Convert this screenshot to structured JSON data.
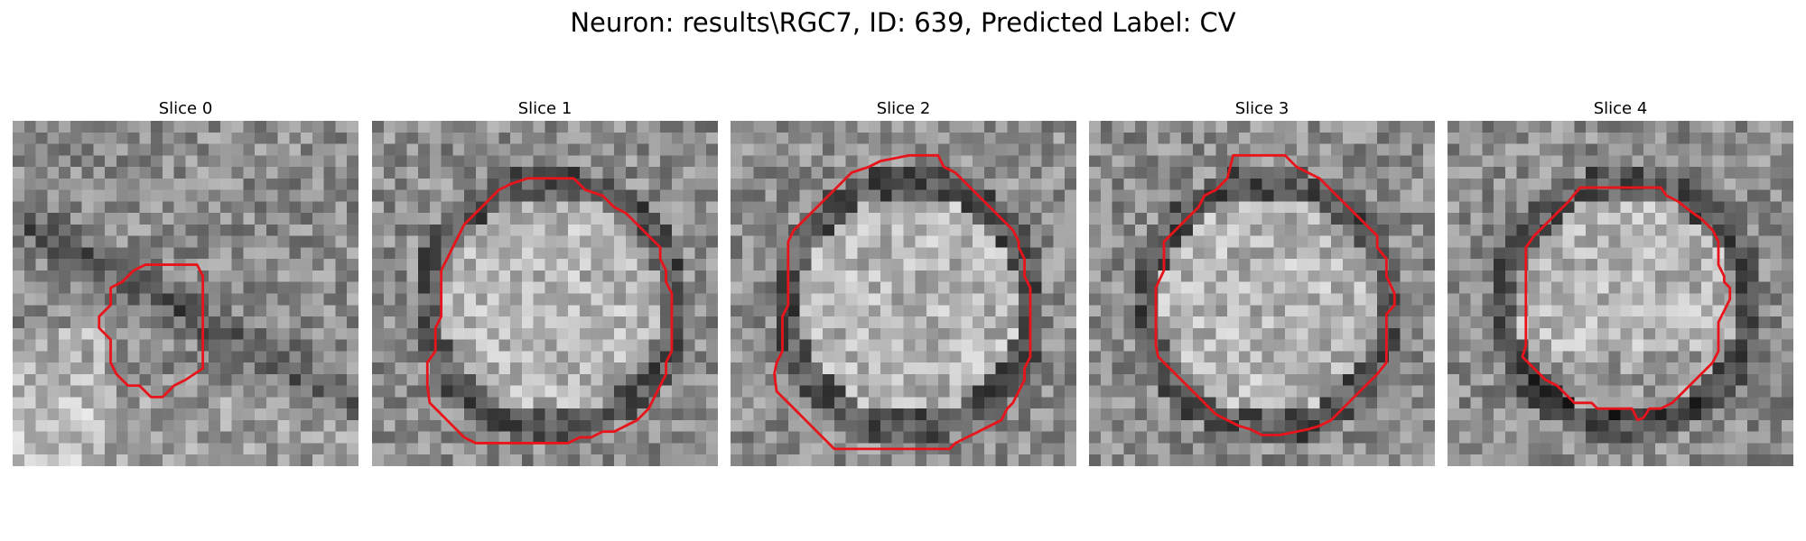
{
  "figure": {
    "title": "Neuron: results\\RGC7, ID: 639, Predicted Label: CV"
  },
  "colors": {
    "contour": "#e8141b",
    "background": "#ffffff"
  },
  "grid_size": 30,
  "slices": [
    {
      "title": "Slice 0",
      "image_kind": "grayscale-noise-with-dark-diagonal-band",
      "contour": [
        [
          11.5,
          12.5
        ],
        [
          16,
          12.5
        ],
        [
          16.5,
          13.5
        ],
        [
          16.5,
          21.5
        ],
        [
          15,
          22.5
        ],
        [
          14,
          23
        ],
        [
          13,
          24
        ],
        [
          12,
          24
        ],
        [
          11,
          23
        ],
        [
          10,
          23
        ],
        [
          9,
          22
        ],
        [
          8.5,
          21
        ],
        [
          8.5,
          19
        ],
        [
          7.5,
          18
        ],
        [
          7.5,
          17
        ],
        [
          8.5,
          16
        ],
        [
          8.5,
          14.5
        ],
        [
          9.5,
          14
        ],
        [
          10.5,
          13
        ]
      ]
    },
    {
      "title": "Slice 1",
      "image_kind": "grayscale-noise-with-round-cell",
      "contour": [
        [
          13.5,
          5
        ],
        [
          17.5,
          5
        ],
        [
          18.5,
          6
        ],
        [
          20,
          6.5
        ],
        [
          21,
          7.5
        ],
        [
          22,
          8
        ],
        [
          23,
          9
        ],
        [
          24,
          10
        ],
        [
          25,
          11
        ],
        [
          25,
          12
        ],
        [
          25.5,
          13
        ],
        [
          25.5,
          14
        ],
        [
          26,
          15
        ],
        [
          26,
          20
        ],
        [
          25.5,
          21
        ],
        [
          25.5,
          22
        ],
        [
          25,
          23
        ],
        [
          24.5,
          24
        ],
        [
          24,
          25
        ],
        [
          23,
          26
        ],
        [
          22,
          26.5
        ],
        [
          21,
          27
        ],
        [
          20,
          27
        ],
        [
          19,
          27.5
        ],
        [
          18,
          27.5
        ],
        [
          17,
          28
        ],
        [
          9,
          28
        ],
        [
          8,
          27.5
        ],
        [
          7,
          26.5
        ],
        [
          6,
          25.5
        ],
        [
          5,
          24.5
        ],
        [
          4.8,
          23
        ],
        [
          4.8,
          21
        ],
        [
          5.5,
          20
        ],
        [
          5.5,
          18
        ],
        [
          6,
          17
        ],
        [
          6,
          13
        ],
        [
          6.5,
          12
        ],
        [
          7,
          11
        ],
        [
          7.5,
          10
        ],
        [
          8,
          9
        ],
        [
          9,
          8
        ],
        [
          10,
          7
        ],
        [
          11,
          6
        ],
        [
          12,
          5.5
        ]
      ]
    },
    {
      "title": "Slice 2",
      "image_kind": "grayscale-noise-with-round-cell",
      "contour": [
        [
          15.5,
          3
        ],
        [
          18,
          3
        ],
        [
          18.5,
          4
        ],
        [
          19.5,
          4.5
        ],
        [
          20.5,
          5.5
        ],
        [
          21.5,
          6.5
        ],
        [
          22.5,
          7.5
        ],
        [
          23.5,
          8.5
        ],
        [
          24.5,
          9.5
        ],
        [
          25,
          10.5
        ],
        [
          25,
          11
        ],
        [
          25.5,
          12
        ],
        [
          25.5,
          13.5
        ],
        [
          26,
          14.5
        ],
        [
          26,
          20.5
        ],
        [
          25.5,
          21.5
        ],
        [
          25.5,
          22.5
        ],
        [
          25,
          23.5
        ],
        [
          24.5,
          24.5
        ],
        [
          24,
          25
        ],
        [
          23.5,
          26
        ],
        [
          22.5,
          26.5
        ],
        [
          21.5,
          27
        ],
        [
          20.5,
          27.5
        ],
        [
          19.5,
          28
        ],
        [
          19,
          28.5
        ],
        [
          9,
          28.5
        ],
        [
          8,
          27.5
        ],
        [
          7,
          26.5
        ],
        [
          6,
          25.5
        ],
        [
          5,
          24.5
        ],
        [
          4,
          23.5
        ],
        [
          3.8,
          22
        ],
        [
          4,
          21
        ],
        [
          4.5,
          20
        ],
        [
          4.5,
          17
        ],
        [
          5,
          16
        ],
        [
          5,
          10.5
        ],
        [
          5.5,
          9.5
        ],
        [
          6.5,
          8.5
        ],
        [
          7.5,
          7.5
        ],
        [
          8.5,
          6.5
        ],
        [
          9.5,
          5.5
        ],
        [
          10.5,
          4.5
        ],
        [
          12,
          4
        ],
        [
          13,
          3.5
        ],
        [
          14.5,
          3.2
        ]
      ]
    },
    {
      "title": "Slice 3",
      "image_kind": "grayscale-noise-with-round-cell",
      "contour": [
        [
          12.5,
          3
        ],
        [
          17,
          3
        ],
        [
          18,
          4
        ],
        [
          19,
          4.5
        ],
        [
          20,
          5
        ],
        [
          21,
          6
        ],
        [
          22,
          7
        ],
        [
          23,
          8
        ],
        [
          25,
          10
        ],
        [
          25,
          11
        ],
        [
          25.8,
          12
        ],
        [
          25.8,
          13.5
        ],
        [
          26.5,
          15
        ],
        [
          26.5,
          16
        ],
        [
          25.8,
          16.8
        ],
        [
          25.8,
          21
        ],
        [
          25,
          22
        ],
        [
          24,
          23
        ],
        [
          23,
          24
        ],
        [
          22,
          25
        ],
        [
          21,
          26
        ],
        [
          20,
          26.5
        ],
        [
          19,
          26.8
        ],
        [
          18,
          27
        ],
        [
          16.5,
          27.3
        ],
        [
          15,
          27.3
        ],
        [
          14,
          26.8
        ],
        [
          13,
          26.5
        ],
        [
          12,
          26
        ],
        [
          11,
          25.5
        ],
        [
          10,
          24.5
        ],
        [
          9.5,
          24
        ],
        [
          9,
          23.5
        ],
        [
          8,
          22.5
        ],
        [
          7,
          21.5
        ],
        [
          6,
          20.5
        ],
        [
          5.8,
          19.5
        ],
        [
          5.8,
          16
        ],
        [
          5.8,
          14.5
        ],
        [
          6.5,
          13
        ],
        [
          6.5,
          10.5
        ],
        [
          7.5,
          9.5
        ],
        [
          8.5,
          8.5
        ],
        [
          9.5,
          7.5
        ],
        [
          10,
          6.5
        ],
        [
          11,
          6
        ],
        [
          12,
          5
        ]
      ]
    },
    {
      "title": "Slice 4",
      "image_kind": "grayscale-noise-with-round-cell-dark-rim",
      "contour": [
        [
          11.5,
          5.8
        ],
        [
          18.5,
          5.8
        ],
        [
          19,
          6.5
        ],
        [
          20,
          7
        ],
        [
          21,
          7.8
        ],
        [
          22,
          8.5
        ],
        [
          23,
          9.5
        ],
        [
          23.5,
          10.5
        ],
        [
          23.5,
          12.5
        ],
        [
          24,
          13.5
        ],
        [
          24,
          14
        ],
        [
          24.5,
          14.5
        ],
        [
          24.5,
          15.5
        ],
        [
          24,
          16.5
        ],
        [
          23.5,
          17.5
        ],
        [
          23.5,
          20
        ],
        [
          23,
          21
        ],
        [
          22,
          22
        ],
        [
          21,
          23
        ],
        [
          20,
          24
        ],
        [
          19.5,
          24.5
        ],
        [
          18.5,
          25
        ],
        [
          17.5,
          25
        ],
        [
          17,
          25.8
        ],
        [
          16.5,
          26
        ],
        [
          16,
          25
        ],
        [
          13,
          25
        ],
        [
          12.5,
          24.5
        ],
        [
          11,
          24.5
        ],
        [
          10,
          23.5
        ],
        [
          9.5,
          23
        ],
        [
          8.5,
          22.5
        ],
        [
          7.5,
          21.5
        ],
        [
          6.5,
          20.5
        ],
        [
          6.8,
          19.5
        ],
        [
          6.8,
          11
        ],
        [
          7.5,
          10
        ],
        [
          8.5,
          9
        ],
        [
          9.5,
          8
        ],
        [
          10.5,
          7
        ]
      ]
    }
  ]
}
